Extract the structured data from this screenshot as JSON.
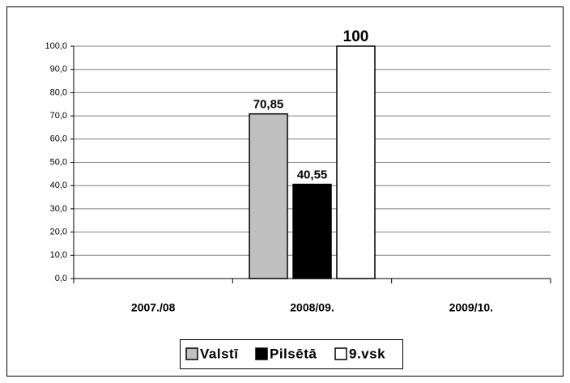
{
  "chart_data": {
    "type": "bar",
    "categories": [
      "2007./08",
      "2008/09.",
      "2009/10."
    ],
    "series": [
      {
        "name": "Valstī",
        "color": "#c0c0c0",
        "values": [
          null,
          70.85,
          null
        ],
        "value_labels": [
          null,
          "70,85",
          null
        ]
      },
      {
        "name": "Pilsētā",
        "color": "#000000",
        "values": [
          null,
          40.55,
          null
        ],
        "value_labels": [
          null,
          "40,55",
          null
        ]
      },
      {
        "name": "9.vsk",
        "color": "#ffffff",
        "values": [
          null,
          100,
          null
        ],
        "value_labels": [
          null,
          "100",
          null
        ]
      }
    ],
    "ylim": [
      0,
      100
    ],
    "yticks": [
      {
        "value": 0,
        "label": "0,0"
      },
      {
        "value": 10,
        "label": "10,0"
      },
      {
        "value": 20,
        "label": "20,0"
      },
      {
        "value": 30,
        "label": "30,0"
      },
      {
        "value": 40,
        "label": "40,0"
      },
      {
        "value": 50,
        "label": "50,0"
      },
      {
        "value": 60,
        "label": "60,0"
      },
      {
        "value": 70,
        "label": "70,0"
      },
      {
        "value": 80,
        "label": "80,0"
      },
      {
        "value": 90,
        "label": "90,0"
      },
      {
        "value": 100,
        "label": "100,0"
      }
    ],
    "grid": true,
    "legend": "bottom"
  }
}
